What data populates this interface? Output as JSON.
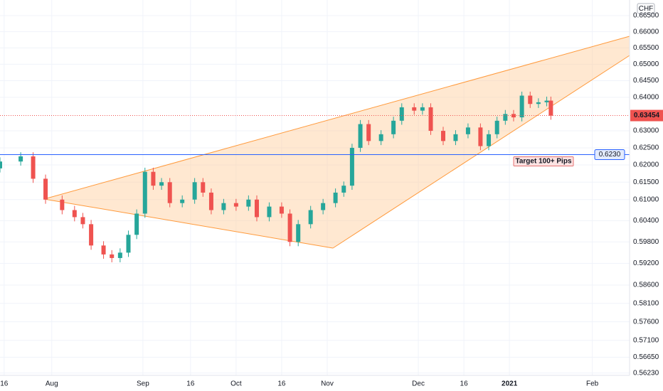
{
  "chart_data": {
    "type": "candlestick",
    "currency": "CHF",
    "log_scale": true,
    "grid": true,
    "up_color": "#26a69a",
    "down_color": "#ef5350",
    "x": [
      0,
      5,
      8,
      11,
      15,
      18,
      20,
      22,
      25,
      27,
      29,
      31,
      33,
      35,
      37,
      39,
      41,
      44,
      47,
      49,
      51,
      54,
      57,
      60,
      62,
      65,
      68,
      70,
      72,
      75,
      78,
      81,
      83,
      85,
      87,
      89,
      92,
      95,
      97,
      100,
      102,
      104,
      107,
      110,
      113,
      116,
      118,
      120,
      122,
      124,
      126,
      128,
      130,
      132,
      133
    ],
    "open": [
      0.619,
      0.621,
      0.6225,
      0.616,
      0.61,
      0.607,
      0.605,
      0.603,
      0.597,
      0.5945,
      0.5935,
      0.595,
      0.6,
      0.606,
      0.618,
      0.614,
      0.615,
      0.609,
      0.61,
      0.615,
      0.612,
      0.607,
      0.609,
      0.608,
      0.61,
      0.605,
      0.608,
      0.606,
      0.598,
      0.603,
      0.607,
      0.609,
      0.612,
      0.614,
      0.625,
      0.632,
      0.627,
      0.629,
      0.633,
      0.637,
      0.636,
      0.637,
      0.63,
      0.627,
      0.629,
      0.631,
      0.6255,
      0.629,
      0.633,
      0.635,
      0.634,
      0.6405,
      0.638,
      0.6385,
      0.639
    ],
    "high": [
      0.6222,
      0.6237,
      0.6237,
      0.6172,
      0.6112,
      0.6082,
      0.6062,
      0.6042,
      0.5982,
      0.5957,
      0.5962,
      0.6012,
      0.6072,
      0.6192,
      0.6192,
      0.6162,
      0.6162,
      0.6112,
      0.6162,
      0.6162,
      0.6132,
      0.6102,
      0.6102,
      0.6112,
      0.6112,
      0.6092,
      0.6092,
      0.6072,
      0.6042,
      0.6082,
      0.6102,
      0.6132,
      0.6152,
      0.6262,
      0.6332,
      0.6332,
      0.6302,
      0.6342,
      0.6382,
      0.6382,
      0.6382,
      0.6382,
      0.6312,
      0.6302,
      0.6322,
      0.6322,
      0.6302,
      0.6342,
      0.6362,
      0.6362,
      0.6417,
      0.6417,
      0.6397,
      0.6402,
      0.6402
    ],
    "low": [
      0.6178,
      0.6198,
      0.6148,
      0.6088,
      0.6058,
      0.6038,
      0.6018,
      0.5958,
      0.5933,
      0.5923,
      0.5923,
      0.5938,
      0.5988,
      0.6048,
      0.6128,
      0.6128,
      0.6078,
      0.6078,
      0.6088,
      0.6108,
      0.6058,
      0.6058,
      0.6068,
      0.6068,
      0.6038,
      0.6038,
      0.6048,
      0.5968,
      0.5968,
      0.6018,
      0.6058,
      0.6078,
      0.6108,
      0.6128,
      0.6238,
      0.6258,
      0.6258,
      0.6278,
      0.6318,
      0.6348,
      0.6348,
      0.6288,
      0.6258,
      0.6258,
      0.6278,
      0.6243,
      0.6243,
      0.6278,
      0.6318,
      0.6328,
      0.6328,
      0.6368,
      0.6368,
      0.6373,
      0.6333
    ],
    "close": [
      0.621,
      0.6225,
      0.616,
      0.61,
      0.607,
      0.605,
      0.603,
      0.597,
      0.5945,
      0.5935,
      0.595,
      0.6,
      0.606,
      0.618,
      0.614,
      0.615,
      0.609,
      0.61,
      0.615,
      0.612,
      0.607,
      0.609,
      0.608,
      0.61,
      0.605,
      0.608,
      0.606,
      0.598,
      0.603,
      0.607,
      0.609,
      0.612,
      0.614,
      0.625,
      0.632,
      0.627,
      0.629,
      0.633,
      0.637,
      0.636,
      0.637,
      0.63,
      0.627,
      0.629,
      0.631,
      0.6255,
      0.629,
      0.633,
      0.635,
      0.634,
      0.6405,
      0.638,
      0.6385,
      0.639,
      0.6345
    ],
    "xlim": [
      0,
      152
    ],
    "xticks": [
      {
        "value": 1,
        "label": "16"
      },
      {
        "value": 12.5,
        "label": "Aug"
      },
      {
        "value": 34.5,
        "label": "Sep"
      },
      {
        "value": 46,
        "label": "16"
      },
      {
        "value": 57,
        "label": "Oct"
      },
      {
        "value": 68,
        "label": "16"
      },
      {
        "value": 79,
        "label": "Nov"
      },
      {
        "value": 101,
        "label": "Dec"
      },
      {
        "value": 112,
        "label": "16"
      },
      {
        "value": 123,
        "label": "2021"
      },
      {
        "value": 143,
        "label": "Feb"
      }
    ],
    "ylim": [
      0.5617,
      0.6699
    ],
    "yticks": [
      {
        "value": 0.665,
        "label": "0.66500"
      },
      {
        "value": 0.66,
        "label": "0.66000"
      },
      {
        "value": 0.655,
        "label": "0.65500"
      },
      {
        "value": 0.65,
        "label": "0.65000"
      },
      {
        "value": 0.645,
        "label": "0.64500"
      },
      {
        "value": 0.64,
        "label": "0.64000"
      },
      {
        "value": 0.63,
        "label": "0.63000"
      },
      {
        "value": 0.625,
        "label": "0.62500"
      },
      {
        "value": 0.62,
        "label": "0.62000"
      },
      {
        "value": 0.615,
        "label": "0.61500"
      },
      {
        "value": 0.61,
        "label": "0.61000"
      },
      {
        "value": 0.604,
        "label": "0.60400"
      },
      {
        "value": 0.598,
        "label": "0.59800"
      },
      {
        "value": 0.592,
        "label": "0.59200"
      },
      {
        "value": 0.586,
        "label": "0.58600"
      },
      {
        "value": 0.581,
        "label": "0.58100"
      },
      {
        "value": 0.576,
        "label": "0.57600"
      },
      {
        "value": 0.571,
        "label": "0.57100"
      },
      {
        "value": 0.5665,
        "label": "0.56650"
      },
      {
        "value": 0.5623,
        "label": "0.56230"
      }
    ],
    "horizontal_line": {
      "value": 0.623,
      "label": "0.6230",
      "color": "#2962ff"
    },
    "last_price": {
      "value": 0.63454,
      "label": "0.63454",
      "color": "#ef5350"
    },
    "annotation": "Target 100+ Pips"
  }
}
